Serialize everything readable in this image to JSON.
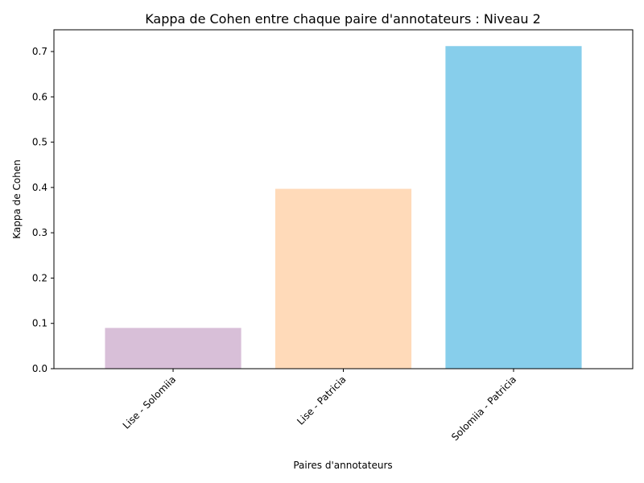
{
  "chart_data": {
    "type": "bar",
    "title": "Kappa de Cohen entre chaque paire d'annotateurs : Niveau 2",
    "xlabel": "Paires d'annotateurs",
    "ylabel": "Kappa de Cohen",
    "categories": [
      "Lise - Solomiia",
      "Lise - Patricia",
      "Solomiia - Patricia"
    ],
    "values": [
      0.09,
      0.397,
      0.712
    ],
    "colors": [
      "#d8bfd8",
      "#ffdab9",
      "#87ceeb"
    ],
    "ylim": [
      0,
      0.748
    ],
    "yticks": [
      "0.0",
      "0.1",
      "0.2",
      "0.3",
      "0.4",
      "0.5",
      "0.6",
      "0.7"
    ],
    "grid": false,
    "legend": "none"
  }
}
